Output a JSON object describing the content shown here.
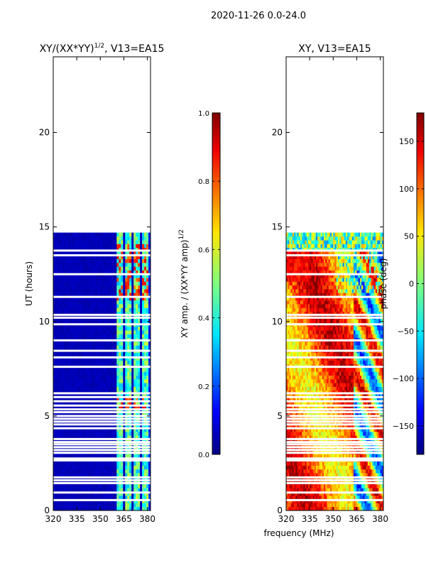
{
  "figure": {
    "suptitle": "2020-11-26 0.0-24.0",
    "xlabel": "frequency (MHz)"
  },
  "chart_data": [
    {
      "type": "heatmap",
      "title_main": "XY/(XX*YY)",
      "title_sup": "1/2",
      "title_tail": ", V13=EA15",
      "ylabel": "UT (hours)",
      "xlim": [
        320,
        382
      ],
      "ylim": [
        0,
        24
      ],
      "xticks": [
        320,
        335,
        350,
        365,
        380
      ],
      "yticks": [
        0,
        5,
        10,
        15,
        20
      ],
      "data_ut_end": 14.7,
      "bright_channels_mhz": [
        [
          360,
          364
        ],
        [
          366,
          370
        ],
        [
          371,
          375
        ],
        [
          376,
          380
        ]
      ],
      "colorbar": {
        "label_main": "XY amp. / (XX*YY amp)",
        "label_sup": "1/2",
        "range": [
          0.0,
          1.0
        ],
        "ticks": [
          "0.0",
          "0.2",
          "0.4",
          "0.6",
          "0.8",
          "1.0"
        ],
        "tick_values": [
          0.0,
          0.2,
          0.4,
          0.6,
          0.8,
          1.0
        ]
      }
    },
    {
      "type": "heatmap",
      "title": "XY, V13=EA15",
      "xlim": [
        320,
        382
      ],
      "ylim": [
        0,
        24
      ],
      "xticks": [
        320,
        335,
        350,
        365,
        380
      ],
      "yticks": [
        0,
        5,
        10,
        15,
        20
      ],
      "data_ut_end": 14.7,
      "colorbar": {
        "label": "phase (deg)",
        "range": [
          -180,
          180
        ],
        "ticks": [
          "150",
          "100",
          "50",
          "0",
          "−50",
          "−100",
          "−150"
        ],
        "tick_values": [
          150,
          100,
          50,
          0,
          -50,
          -100,
          -150
        ]
      }
    }
  ],
  "flagged_ut_hours": [
    0.55,
    0.95,
    1.45,
    1.6,
    1.75,
    2.65,
    2.75,
    3.05,
    3.2,
    3.35,
    3.5,
    3.62,
    3.78,
    4.35,
    4.55,
    4.7,
    4.85,
    5.0,
    5.2,
    5.35,
    5.55,
    5.78,
    6.0,
    6.2,
    7.6,
    8.1,
    8.45,
    9.0,
    9.85,
    10.2,
    10.35,
    11.3,
    12.5,
    13.5,
    13.75
  ]
}
